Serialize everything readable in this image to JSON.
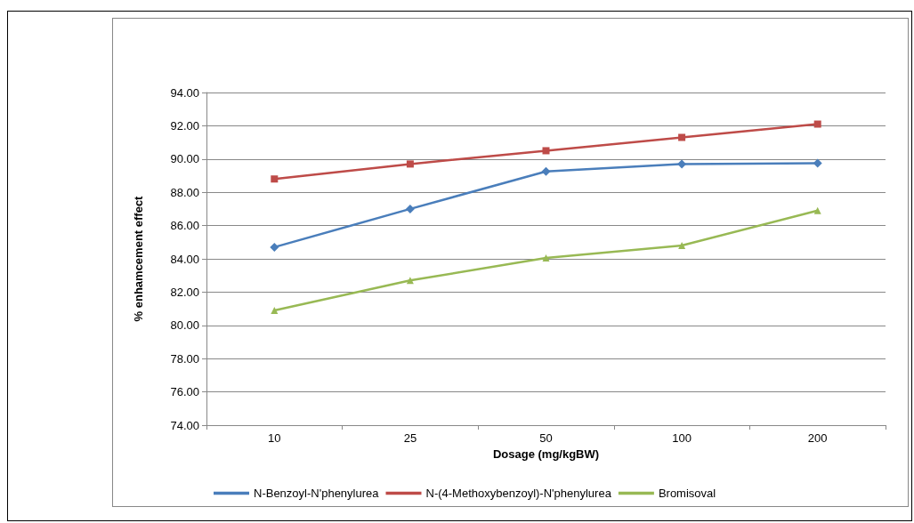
{
  "chart_data": {
    "type": "line",
    "xlabel": "Dosage (mg/kgBW)",
    "ylabel": "% enhamcement effect",
    "categories": [
      "10",
      "25",
      "50",
      "100",
      "200"
    ],
    "series": [
      {
        "name": "N-Benzoyl-N'phenylurea",
        "color": "#4a7ebb",
        "marker": "diamond",
        "values": [
          84.7,
          87.0,
          89.25,
          89.7,
          89.75
        ]
      },
      {
        "name": "N-(4-Methoxybenzoyl)-N'phenylurea",
        "color": "#be4b48",
        "marker": "square",
        "values": [
          88.8,
          89.7,
          90.5,
          91.3,
          92.1
        ]
      },
      {
        "name": "Bromisoval",
        "color": "#98b954",
        "marker": "triangle",
        "values": [
          80.9,
          82.7,
          84.05,
          84.8,
          86.9
        ]
      }
    ],
    "ylim": [
      74,
      94
    ],
    "yticks": [
      {
        "value": 74,
        "label": "74.00"
      },
      {
        "value": 76,
        "label": "76.00"
      },
      {
        "value": 78,
        "label": "78.00"
      },
      {
        "value": 80,
        "label": "80.00"
      },
      {
        "value": 82,
        "label": "82.00"
      },
      {
        "value": 84,
        "label": "84.00"
      },
      {
        "value": 86,
        "label": "86.00"
      },
      {
        "value": 88,
        "label": "88.00"
      },
      {
        "value": 90,
        "label": "90.00"
      },
      {
        "value": 92,
        "label": "92.00"
      },
      {
        "value": 94,
        "label": "94.00"
      }
    ],
    "grid": "y",
    "legend": "bottom",
    "line_style": "solid"
  }
}
